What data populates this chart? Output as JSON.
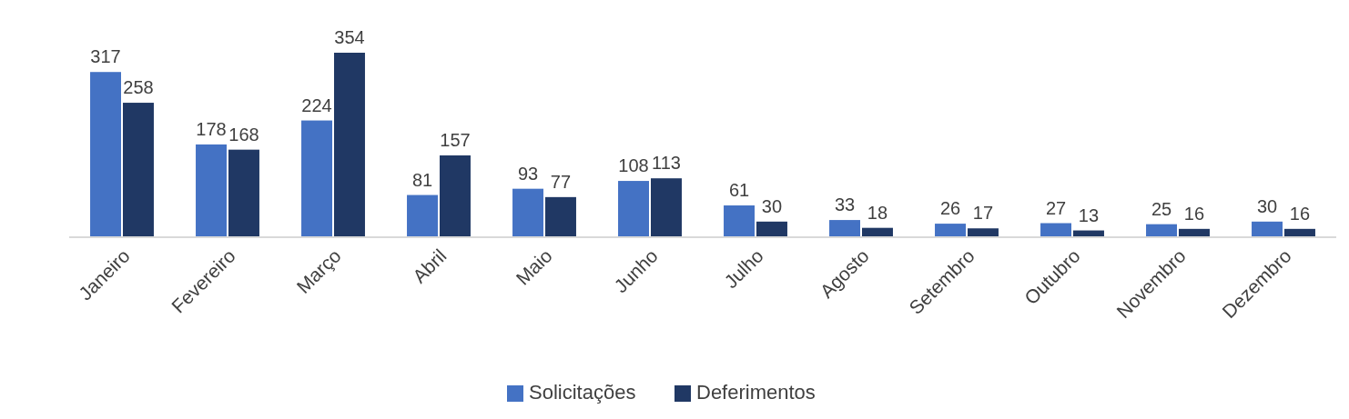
{
  "chart_data": {
    "type": "bar",
    "categories": [
      "Janeiro",
      "Fevereiro",
      "Março",
      "Abril",
      "Maio",
      "Junho",
      "Julho",
      "Agosto",
      "Setembro",
      "Outubro",
      "Novembro",
      "Dezembro"
    ],
    "series": [
      {
        "name": "Solicitações",
        "color": "#4472c4",
        "values": [
          317,
          178,
          224,
          81,
          93,
          108,
          61,
          33,
          26,
          27,
          25,
          30
        ]
      },
      {
        "name": "Deferimentos",
        "color": "#203864",
        "values": [
          258,
          168,
          354,
          157,
          77,
          113,
          30,
          18,
          17,
          13,
          16,
          16
        ]
      }
    ],
    "data_labels": true,
    "legend": "bottom"
  }
}
